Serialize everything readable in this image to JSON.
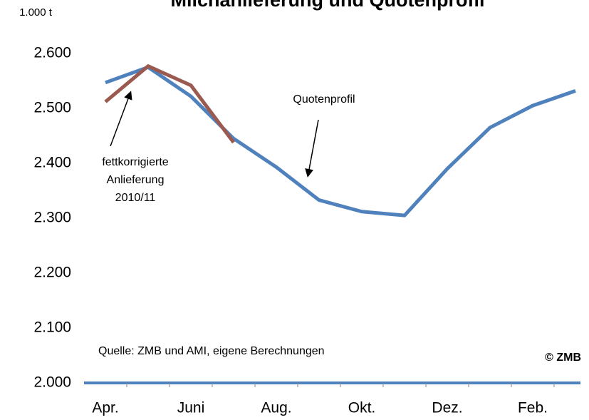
{
  "chart_data": {
    "type": "line",
    "title": "Milchanlieferung und Quotenprofil",
    "y_unit": "1.000 t",
    "categories": [
      "Apr.",
      null,
      "Juni",
      null,
      "Aug.",
      null,
      "Okt.",
      null,
      "Dez.",
      null,
      "Feb.",
      null
    ],
    "series": [
      {
        "name": "Quotenprofil",
        "color": "#4f81bd",
        "values": [
          2547,
          2575,
          2522,
          2445,
          2393,
          2333,
          2312,
          2305,
          2390,
          2465,
          2505,
          2532
        ]
      },
      {
        "color": "#9b5a4f",
        "values": [
          2512,
          2577,
          2542,
          2438,
          null,
          null,
          null,
          null,
          null,
          null,
          null,
          null
        ]
      }
    ],
    "ylim": [
      2000,
      2600
    ],
    "yticks": [
      {
        "value": 2000,
        "label": "2.000"
      },
      {
        "value": 2100,
        "label": "2.100"
      },
      {
        "value": 2200,
        "label": "2.200"
      },
      {
        "value": 2300,
        "label": "2.300"
      },
      {
        "value": 2400,
        "label": "2.400"
      },
      {
        "value": 2500,
        "label": "2.500"
      },
      {
        "value": 2600,
        "label": "2.600"
      }
    ],
    "grid": false,
    "annotations": {
      "series_1_label": [
        "fettkorrigierte",
        "Anlieferung",
        "2010/11"
      ],
      "source": "Quelle: ZMB und AMI, eigene Berechnungen",
      "copyright": "© ZMB"
    }
  }
}
